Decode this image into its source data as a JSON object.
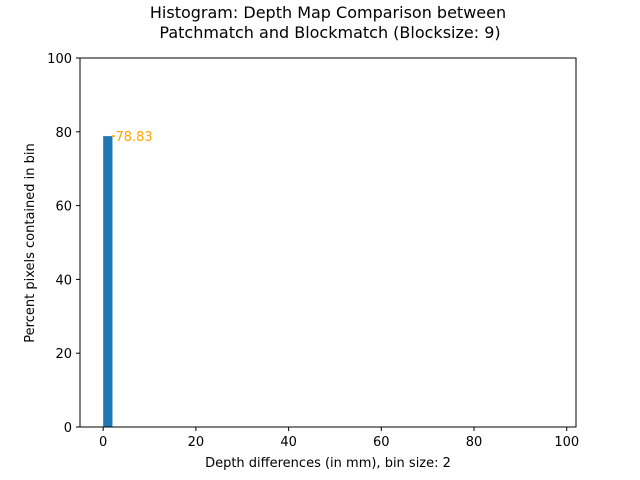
{
  "chart_data": {
    "type": "bar",
    "title_line1": "Histogram: Depth Map Comparison between",
    "title_line2": "Patchmatch and Blockmatch (Blocksize: 9)",
    "xlabel": "Depth differences (in mm), bin size: 2",
    "ylabel": "Percent pixels contained in bin",
    "xlim": [
      -5,
      102
    ],
    "ylim": [
      0,
      100
    ],
    "x_ticks": [
      0,
      20,
      40,
      60,
      80,
      100
    ],
    "y_ticks": [
      0,
      20,
      40,
      60,
      80,
      100
    ],
    "bin_size": 2,
    "bars": [
      {
        "x_start": 0,
        "x_end": 2,
        "value": 78.83
      }
    ],
    "annotations": [
      {
        "text": "78.83",
        "x": 2,
        "y": 78.83,
        "color": "#ffa500"
      }
    ],
    "bar_color": "#1f77b4",
    "annotation_color": "#ffa500",
    "grid": false
  }
}
